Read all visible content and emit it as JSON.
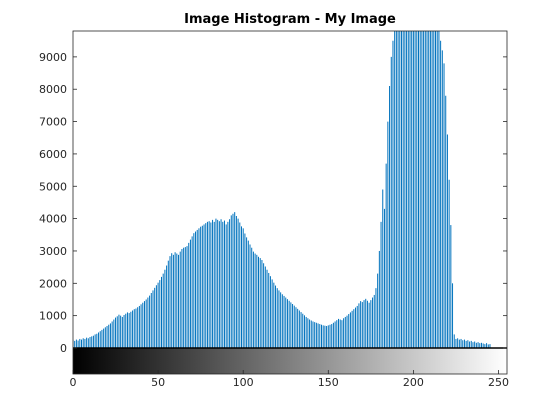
{
  "chart_data": {
    "type": "bar",
    "title": "Image Histogram - My Image",
    "xlabel": "",
    "ylabel": "",
    "xlim": [
      0,
      255
    ],
    "ylim": [
      0,
      9800
    ],
    "x_ticks": [
      0,
      50,
      100,
      150,
      200,
      250
    ],
    "y_ticks": [
      0,
      1000,
      2000,
      3000,
      4000,
      5000,
      6000,
      7000,
      8000,
      9000
    ],
    "grid": false,
    "colorbar": {
      "type": "grayscale",
      "range": [
        0,
        255
      ],
      "position": "below-axis"
    },
    "bar_color": "#0072bd",
    "series": [
      {
        "bins": "0-255",
        "values": [
          250,
          220,
          260,
          230,
          280,
          260,
          300,
          280,
          320,
          300,
          340,
          360,
          380,
          420,
          440,
          480,
          520,
          560,
          600,
          640,
          680,
          720,
          760,
          820,
          880,
          940,
          980,
          1030,
          1000,
          960,
          1020,
          1060,
          1100,
          1080,
          1120,
          1160,
          1200,
          1220,
          1260,
          1300,
          1350,
          1400,
          1450,
          1500,
          1560,
          1620,
          1700,
          1780,
          1860,
          1940,
          2020,
          2100,
          2200,
          2300,
          2420,
          2550,
          2700,
          2840,
          2930,
          2880,
          2960,
          2920,
          2880,
          2980,
          3060,
          3100,
          3120,
          3150,
          3250,
          3350,
          3450,
          3550,
          3600,
          3650,
          3700,
          3750,
          3780,
          3820,
          3860,
          3900,
          3920,
          3880,
          3960,
          3900,
          4000,
          3960,
          3920,
          3980,
          3900,
          3940,
          3820,
          3900,
          3980,
          4100,
          4150,
          4200,
          4080,
          4000,
          3880,
          3760,
          3700,
          3540,
          3420,
          3320,
          3200,
          3100,
          2980,
          2920,
          2880,
          2820,
          2780,
          2720,
          2620,
          2520,
          2420,
          2320,
          2220,
          2120,
          2020,
          1930,
          1850,
          1780,
          1720,
          1660,
          1610,
          1560,
          1510,
          1460,
          1410,
          1360,
          1310,
          1260,
          1210,
          1160,
          1110,
          1060,
          1010,
          960,
          920,
          880,
          850,
          820,
          800,
          780,
          760,
          740,
          720,
          700,
          690,
          680,
          700,
          720,
          740,
          780,
          820,
          860,
          900,
          880,
          860,
          920,
          960,
          1000,
          1050,
          1100,
          1150,
          1200,
          1250,
          1300,
          1380,
          1450,
          1420,
          1480,
          1520,
          1460,
          1400,
          1480,
          1560,
          1640,
          1850,
          2300,
          3000,
          3900,
          4900,
          4300,
          5700,
          7000,
          8100,
          9000,
          9500,
          9800,
          9800,
          9800,
          9800,
          9800,
          9800,
          9800,
          9800,
          9800,
          9800,
          9800,
          9800,
          9800,
          9800,
          9800,
          9800,
          9800,
          9800,
          9800,
          9800,
          9800,
          9800,
          9800,
          9800,
          9800,
          9800,
          9800,
          9500,
          9200,
          8800,
          7800,
          6600,
          5200,
          3800,
          2000,
          420,
          280,
          300,
          260,
          280,
          240,
          260,
          220,
          240,
          200,
          220,
          180,
          200,
          160,
          180,
          150,
          160,
          140,
          120,
          150,
          110,
          120
        ]
      }
    ]
  }
}
